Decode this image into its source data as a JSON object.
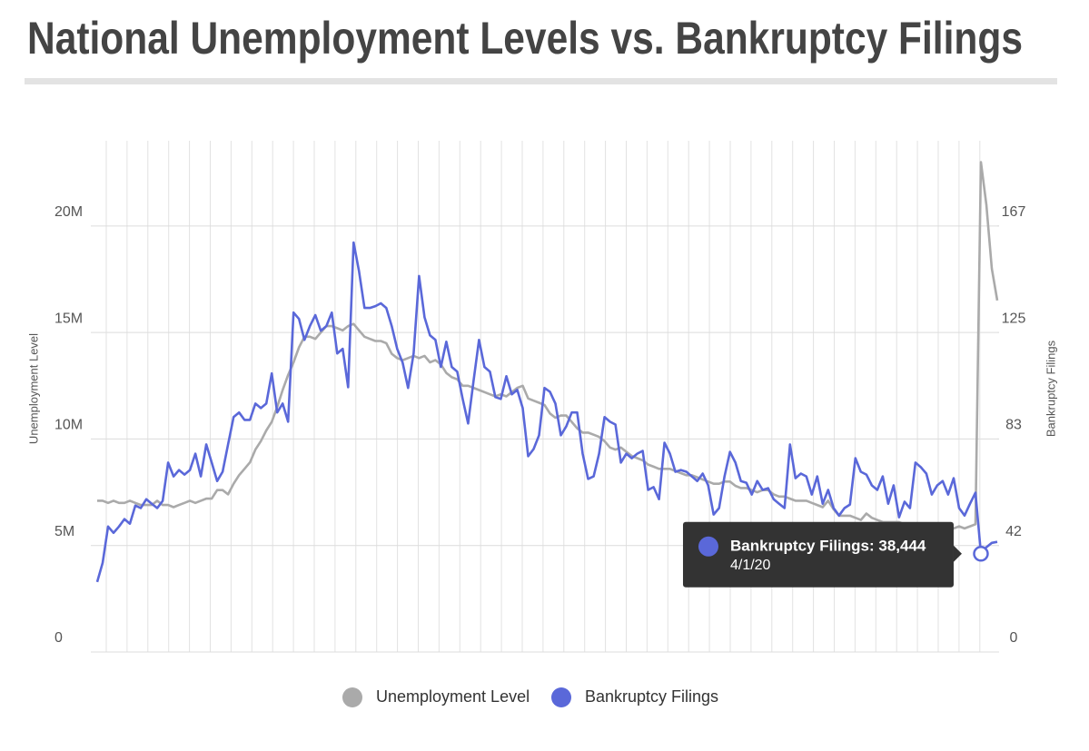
{
  "chart_data": {
    "type": "line",
    "title": "National Unemployment Levels vs. Bankruptcy Filings",
    "y_label": "Unemployment Level",
    "y2_label": "Bankruptcy Filings",
    "ylim": [
      0,
      24
    ],
    "yticks": [
      0,
      {
        "value": 5,
        "label": "5M"
      },
      {
        "value": 10,
        "label": "10M"
      },
      {
        "value": 15,
        "label": "15M"
      },
      {
        "value": 20,
        "label": "20M"
      }
    ],
    "y2lim": [
      0,
      200
    ],
    "y2ticks": [
      0,
      {
        "value": 41.667,
        "label": "42"
      },
      {
        "value": 83.333,
        "label": "83"
      },
      125,
      {
        "value": 166.667,
        "label": "167"
      }
    ],
    "grid": true,
    "legend": "bottom",
    "tooltip": "Bankruptcy Filings: 38,444",
    "categories": [
      null,
      null,
      null,
      null,
      null,
      null,
      null,
      null,
      null,
      null,
      null,
      null,
      null,
      null,
      null,
      null,
      null,
      null,
      null,
      null,
      null,
      null,
      null,
      null,
      null,
      null,
      null,
      null,
      null,
      null,
      null,
      null,
      null,
      null,
      null,
      null,
      null,
      null,
      null,
      null,
      null,
      null,
      null,
      null,
      null,
      null,
      null,
      null,
      null,
      null,
      null,
      null,
      null,
      null,
      null,
      null,
      null,
      null,
      null,
      null,
      null,
      null,
      null,
      null,
      null,
      null,
      null,
      null,
      null,
      null,
      null,
      null,
      null,
      null,
      null,
      null,
      null,
      null,
      null,
      null,
      null,
      null,
      null,
      null,
      null,
      null,
      null,
      null,
      null,
      null,
      null,
      null,
      null,
      null,
      null,
      null,
      null,
      null,
      null,
      null,
      null,
      null,
      null,
      null,
      null,
      null,
      null,
      null,
      null,
      null,
      null,
      null,
      null,
      null,
      null,
      null,
      null,
      null,
      null,
      null,
      null,
      null,
      null,
      null,
      null,
      null,
      null,
      null,
      null,
      null,
      null,
      null,
      null,
      null,
      null,
      null,
      null,
      null,
      null,
      null,
      null,
      null,
      null,
      null,
      null,
      null,
      null,
      null,
      null,
      null,
      null,
      null,
      null,
      null,
      null,
      null,
      null,
      null,
      null,
      null,
      null,
      null,
      "4/1/20",
      null,
      null,
      null
    ],
    "series": [
      {
        "name": "Unemployment Level",
        "color": "#aaaaaa",
        "axis": "y",
        "values": [
          7.1,
          7.1,
          7.0,
          7.1,
          7.0,
          7.0,
          7.1,
          7.0,
          6.9,
          6.9,
          6.9,
          7.1,
          6.9,
          6.9,
          6.8,
          6.9,
          7.0,
          7.1,
          7.0,
          7.1,
          7.2,
          7.2,
          7.6,
          7.6,
          7.4,
          7.9,
          8.3,
          8.6,
          8.9,
          9.5,
          9.9,
          10.4,
          10.8,
          11.5,
          12.3,
          13.0,
          13.6,
          14.3,
          14.8,
          14.8,
          14.7,
          15.0,
          15.3,
          15.3,
          15.2,
          15.1,
          15.3,
          15.4,
          15.1,
          14.8,
          14.7,
          14.6,
          14.6,
          14.5,
          14.0,
          13.8,
          13.7,
          13.8,
          13.9,
          13.8,
          13.9,
          13.6,
          13.7,
          13.5,
          13.1,
          12.9,
          12.8,
          12.5,
          12.5,
          12.4,
          12.3,
          12.2,
          12.1,
          12.0,
          12.1,
          12.0,
          12.2,
          12.4,
          12.5,
          11.9,
          11.8,
          11.7,
          11.6,
          11.2,
          11.0,
          11.1,
          11.1,
          10.8,
          10.5,
          10.3,
          10.3,
          10.2,
          10.1,
          9.9,
          9.6,
          9.5,
          9.6,
          9.4,
          9.2,
          9.1,
          9.0,
          8.8,
          8.7,
          8.6,
          8.6,
          8.6,
          8.5,
          8.4,
          8.3,
          8.3,
          8.2,
          8.1,
          8.0,
          7.9,
          7.9,
          8.0,
          8.0,
          7.8,
          7.7,
          7.7,
          7.6,
          7.5,
          7.6,
          7.6,
          7.4,
          7.3,
          7.3,
          7.2,
          7.1,
          7.1,
          7.1,
          7.0,
          6.9,
          6.8,
          7.1,
          6.7,
          6.4,
          6.4,
          6.4,
          6.3,
          6.2,
          6.5,
          6.3,
          6.2,
          6.1,
          6.1,
          6.1,
          6.1,
          6.0,
          6.0,
          6.0,
          5.9,
          5.9,
          5.8,
          5.9,
          5.8,
          5.8,
          5.8,
          5.9,
          5.8,
          5.9,
          6.0,
          23.0,
          21.0,
          18.0,
          16.5
        ]
      },
      {
        "name": "Bankruptcy Filings",
        "color": "#5a68d9",
        "axis": "y2",
        "values": [
          27.4,
          34.9,
          49.1,
          46.6,
          49.1,
          52.0,
          50.2,
          57.3,
          56.3,
          59.8,
          58.0,
          56.3,
          59.1,
          74.1,
          68.7,
          71.2,
          69.4,
          71.2,
          77.6,
          68.7,
          81.2,
          74.1,
          66.9,
          70.5,
          81.2,
          91.9,
          93.7,
          90.8,
          90.8,
          97.2,
          95.4,
          97.2,
          109.0,
          93.7,
          97.2,
          90.1,
          132.8,
          130.3,
          122.1,
          127.5,
          131.8,
          125.7,
          127.5,
          132.8,
          116.8,
          118.6,
          103.6,
          160.2,
          148.9,
          134.6,
          134.6,
          135.3,
          136.4,
          134.6,
          127.5,
          118.6,
          113.2,
          103.3,
          116.8,
          147.1,
          131.0,
          123.9,
          122.1,
          111.5,
          121.4,
          111.5,
          109.7,
          99.0,
          89.4,
          106.1,
          122.1,
          111.5,
          109.7,
          99.7,
          99.0,
          107.9,
          100.8,
          102.6,
          95.4,
          76.6,
          79.4,
          84.8,
          103.3,
          101.8,
          97.2,
          84.8,
          88.3,
          93.7,
          93.7,
          77.6,
          67.7,
          68.7,
          77.6,
          91.9,
          90.1,
          89.0,
          74.1,
          77.6,
          75.8,
          77.6,
          78.7,
          63.4,
          64.5,
          59.8,
          81.9,
          77.6,
          70.5,
          71.2,
          70.5,
          68.7,
          66.9,
          69.8,
          65.2,
          53.8,
          56.3,
          68.7,
          78.3,
          74.1,
          66.9,
          66.2,
          61.6,
          66.9,
          63.4,
          64.1,
          59.8,
          58.0,
          56.3,
          81.2,
          68.0,
          69.8,
          68.7,
          61.6,
          68.7,
          58.0,
          63.4,
          56.3,
          53.4,
          56.3,
          57.7,
          75.8,
          70.5,
          69.4,
          65.2,
          63.4,
          68.7,
          58.0,
          65.2,
          52.7,
          58.8,
          56.3,
          74.1,
          72.3,
          69.8,
          61.6,
          65.2,
          66.9,
          61.6,
          68.0,
          56.3,
          53.4,
          58.0,
          62.3,
          38.444,
          41.0,
          42.7,
          43.1
        ]
      }
    ]
  }
}
